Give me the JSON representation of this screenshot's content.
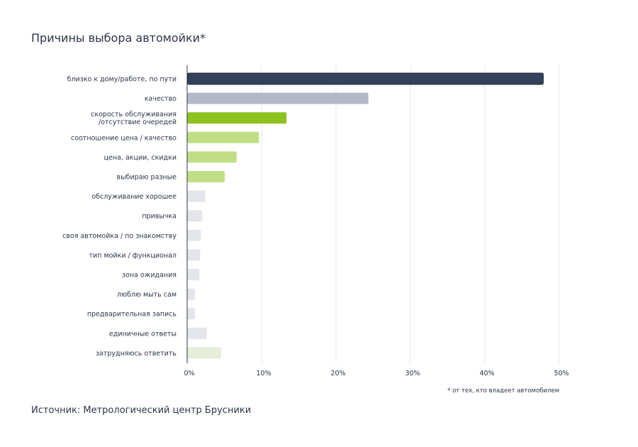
{
  "header": {
    "title": "Причины выбора автомойки*"
  },
  "footnote": "* от тех, кто владеет автомобилем",
  "source": "Источник: Метрологический центр Брусники",
  "chart_data": {
    "type": "bar",
    "orientation": "horizontal",
    "title": "Причины выбора автомойки*",
    "xlim": [
      0,
      50
    ],
    "x_ticks": [
      0,
      10,
      20,
      30,
      40,
      50
    ],
    "x_tick_labels": [
      "0%",
      "10%",
      "20%",
      "30%",
      "40%",
      "50%"
    ],
    "grid": true,
    "categories": [
      "близко к дому/работе, по пути",
      "качество",
      "скорость обслуживания\n/отсутствие очередей",
      "соотношение цена / качество",
      "цена, акции, скидки",
      "выбираю разные",
      "обслуживание хорошее",
      "привычка",
      "своя автомойка / по знакомству",
      "тип мойки / функционал",
      "зона ожидания",
      "люблю мыть сам",
      "предварительная запись",
      "единичные ответы",
      "затрудняюсь ответить"
    ],
    "values": [
      47.8,
      24.3,
      13.3,
      9.6,
      6.6,
      5.0,
      2.4,
      2.0,
      1.8,
      1.7,
      1.6,
      1.0,
      1.0,
      2.6,
      4.5
    ],
    "colors": [
      "#34415a",
      "#b3b9cb",
      "#8dc21f",
      "#c0df85",
      "#c0df85",
      "#c0df85",
      "#e3e5ea",
      "#e3e5ea",
      "#e3e5ea",
      "#e3e5ea",
      "#e3e5ea",
      "#e3e5ea",
      "#e3e5ea",
      "#e3e5ea",
      "#e6edd8"
    ]
  }
}
